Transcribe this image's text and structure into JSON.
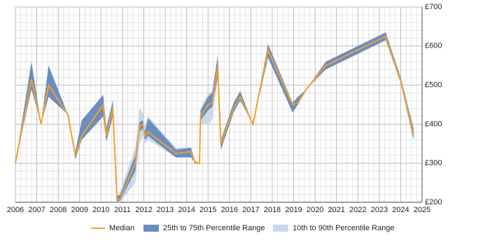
{
  "chart_data": {
    "type": "band-line",
    "x": [
      2006.0,
      2006.75,
      2007.2,
      2007.55,
      2008.45,
      2008.8,
      2009.1,
      2010.1,
      2010.25,
      2010.55,
      2010.75,
      2010.9,
      2011.6,
      2011.8,
      2011.95,
      2012.05,
      2012.2,
      2013.5,
      2014.2,
      2014.4,
      2014.6,
      2014.65,
      2015.0,
      2015.2,
      2015.45,
      2015.6,
      2016.2,
      2016.5,
      2017.1,
      2017.8,
      2018.95,
      2019.2,
      2019.6,
      2020.5,
      2023.3,
      2024.0,
      2024.6
    ],
    "series": [
      {
        "name": "Median",
        "color": "#f0a030",
        "values": [
          300,
          515,
          400,
          500,
          425,
          320,
          370,
          450,
          370,
          440,
          205,
          210,
          300,
          395,
          400,
          370,
          380,
          325,
          330,
          300,
          300,
          420,
          450,
          455,
          545,
          350,
          440,
          470,
          400,
          590,
          450,
          455,
          490,
          550,
          625,
          510,
          375
        ]
      },
      {
        "name": "25th to 75th Percentile Range",
        "color": "#6b8dbf",
        "low": [
          300,
          490,
          400,
          470,
          425,
          310,
          360,
          420,
          355,
          420,
          200,
          205,
          280,
          380,
          390,
          360,
          370,
          315,
          315,
          300,
          300,
          410,
          435,
          445,
          520,
          335,
          430,
          460,
          400,
          570,
          430,
          450,
          490,
          540,
          615,
          505,
          360
        ],
        "high": [
          300,
          560,
          400,
          550,
          425,
          330,
          410,
          475,
          390,
          460,
          215,
          220,
          320,
          405,
          410,
          380,
          415,
          335,
          340,
          305,
          300,
          435,
          470,
          480,
          575,
          360,
          455,
          485,
          400,
          605,
          455,
          470,
          490,
          560,
          635,
          520,
          390
        ]
      },
      {
        "name": "10th to 90th Percentile Range",
        "color": "#c9d9ec",
        "low": [
          300,
          490,
          400,
          470,
          425,
          310,
          360,
          420,
          355,
          420,
          200,
          200,
          250,
          350,
          370,
          350,
          360,
          315,
          315,
          300,
          300,
          400,
          400,
          410,
          520,
          335,
          430,
          460,
          400,
          570,
          430,
          450,
          490,
          540,
          615,
          505,
          360
        ],
        "high": [
          300,
          560,
          400,
          550,
          425,
          330,
          410,
          475,
          390,
          460,
          215,
          230,
          340,
          440,
          430,
          400,
          420,
          340,
          340,
          305,
          300,
          440,
          480,
          485,
          575,
          360,
          455,
          485,
          400,
          605,
          455,
          470,
          490,
          560,
          635,
          520,
          390
        ]
      }
    ],
    "xlim": [
      2006,
      2025
    ],
    "xticks": [
      2006,
      2007,
      2008,
      2009,
      2010,
      2011,
      2012,
      2013,
      2014,
      2015,
      2016,
      2017,
      2018,
      2019,
      2020,
      2021,
      2022,
      2023,
      2024,
      2025
    ],
    "ylim": [
      200,
      700
    ],
    "yticks": [
      {
        "value": 200,
        "label": "£200"
      },
      {
        "value": 300,
        "label": "£300"
      },
      {
        "value": 400,
        "label": "£400"
      },
      {
        "value": 500,
        "label": "£500"
      },
      {
        "value": 600,
        "label": "£600"
      },
      {
        "value": 700,
        "label": "£700"
      }
    ],
    "grid": true
  }
}
